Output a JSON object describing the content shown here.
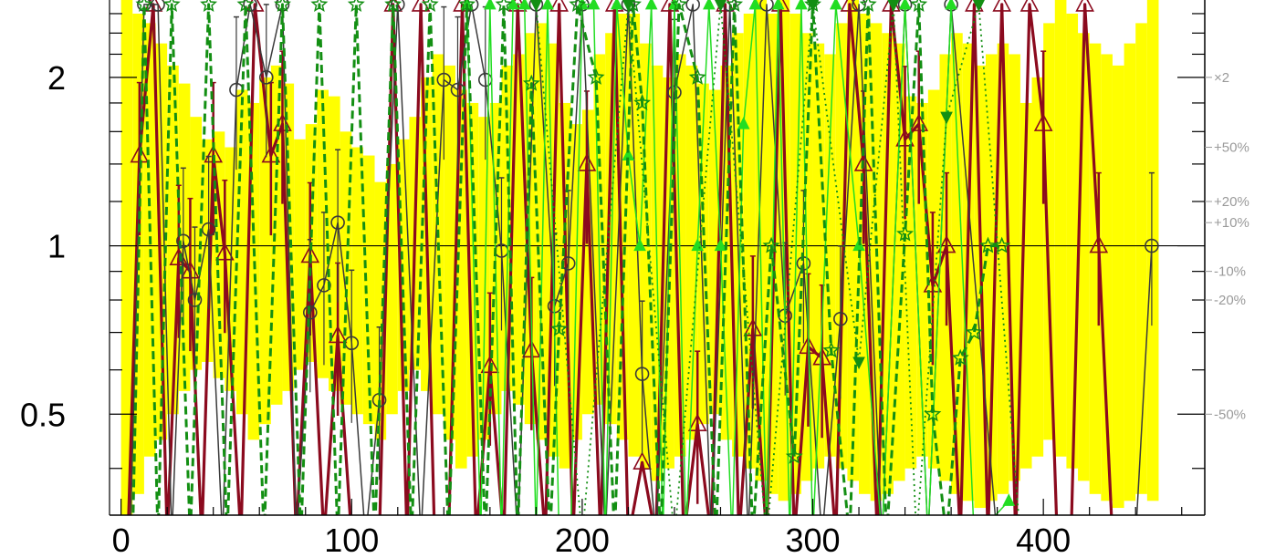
{
  "chart_data": {
    "type": "line",
    "x_scale": "linear",
    "y_scale": "log",
    "xlim": [
      -5,
      470
    ],
    "ylim": [
      0.33,
      2.75
    ],
    "x_ticks": [
      0,
      100,
      200,
      300,
      400
    ],
    "x_tick_labels": [
      "0",
      "100",
      "200",
      "300",
      "400"
    ],
    "y_ticks": [
      0.5,
      1,
      2
    ],
    "y_tick_labels": [
      "0.5",
      "1",
      "2"
    ],
    "reference_line": 1,
    "right_axis_labels": [
      {
        "value": 2,
        "label": "×2"
      },
      {
        "value": 1.5,
        "label": "+50%"
      },
      {
        "value": 1.2,
        "label": "+20%"
      },
      {
        "value": 1.1,
        "label": "+10%"
      },
      {
        "value": 0.9,
        "label": "-10%"
      },
      {
        "value": 0.8,
        "label": "-20%"
      },
      {
        "value": 0.5,
        "label": "-50%"
      }
    ],
    "colors": {
      "band": "#ffff00",
      "dark_red": "#8b0a1e",
      "dark_gray": "#3a3a3a",
      "green_light": "#22dd22",
      "green_dark": "#138f13",
      "frame": "#000000"
    },
    "band": {
      "x": [
        0,
        5,
        10,
        15,
        20,
        25,
        30,
        35,
        40,
        45,
        50,
        55,
        60,
        65,
        70,
        75,
        80,
        85,
        90,
        95,
        100,
        105,
        110,
        115,
        120,
        125,
        130,
        135,
        140,
        145,
        150,
        155,
        160,
        165,
        170,
        175,
        180,
        185,
        190,
        195,
        200,
        205,
        210,
        215,
        220,
        225,
        230,
        235,
        240,
        245,
        250,
        255,
        260,
        265,
        270,
        275,
        280,
        285,
        290,
        295,
        300,
        305,
        310,
        315,
        320,
        325,
        330,
        335,
        340,
        345,
        350,
        355,
        360,
        365,
        370,
        375,
        380,
        385,
        390,
        395,
        400,
        405,
        410,
        415,
        420,
        425,
        430,
        435,
        440,
        445,
        450
      ],
      "upper": [
        2.75,
        2.6,
        2.5,
        2.3,
        2.1,
        1.95,
        1.7,
        1.55,
        1.6,
        1.5,
        1.9,
        1.8,
        2.0,
        2.1,
        1.95,
        1.55,
        1.65,
        1.9,
        1.85,
        1.6,
        1.5,
        1.45,
        1.3,
        1.4,
        1.55,
        1.7,
        2.0,
        2.2,
        2.1,
        1.9,
        1.8,
        1.7,
        1.8,
        2.1,
        2.2,
        2.4,
        2.5,
        2.3,
        1.8,
        1.65,
        1.75,
        2.2,
        2.4,
        2.6,
        2.6,
        2.3,
        2.1,
        2.0,
        2.2,
        2.1,
        1.95,
        1.9,
        2.1,
        2.4,
        2.6,
        2.75,
        2.6,
        2.75,
        2.6,
        2.4,
        2.3,
        2.2,
        2.5,
        2.75,
        2.6,
        2.5,
        2.4,
        2.3,
        1.85,
        1.8,
        1.9,
        2.2,
        2.4,
        2.3,
        2.1,
        2.2,
        2.3,
        2.2,
        1.8,
        2.0,
        2.5,
        2.75,
        2.6,
        2.4,
        2.3,
        2.2,
        2.1,
        2.3,
        2.5,
        2.75,
        2.6
      ],
      "lower": [
        0.33,
        0.36,
        0.42,
        0.45,
        0.5,
        0.55,
        0.6,
        0.62,
        0.58,
        0.55,
        0.5,
        0.45,
        0.48,
        0.52,
        0.55,
        0.6,
        0.62,
        0.58,
        0.55,
        0.52,
        0.5,
        0.48,
        0.45,
        0.5,
        0.55,
        0.6,
        0.55,
        0.5,
        0.45,
        0.4,
        0.42,
        0.45,
        0.5,
        0.55,
        0.52,
        0.48,
        0.45,
        0.42,
        0.4,
        0.45,
        0.5,
        0.52,
        0.48,
        0.45,
        0.42,
        0.4,
        0.38,
        0.4,
        0.42,
        0.45,
        0.48,
        0.5,
        0.45,
        0.42,
        0.4,
        0.38,
        0.36,
        0.35,
        0.36,
        0.38,
        0.4,
        0.42,
        0.4,
        0.38,
        0.36,
        0.35,
        0.36,
        0.38,
        0.4,
        0.42,
        0.4,
        0.38,
        0.36,
        0.35,
        0.34,
        0.35,
        0.36,
        0.38,
        0.4,
        0.42,
        0.45,
        0.42,
        0.4,
        0.38,
        0.36,
        0.35,
        0.34,
        0.35,
        0.36,
        0.35,
        0.34
      ]
    },
    "series": [
      {
        "marker": "triangle",
        "style": "solid-thick",
        "color": "#8b0a1e",
        "x": [
          3,
          8,
          14,
          20,
          25,
          30,
          35,
          40,
          45,
          52,
          58,
          65,
          70,
          76,
          82,
          88,
          94,
          100,
          106,
          112,
          118,
          124,
          130,
          136,
          142,
          148,
          154,
          160,
          166,
          172,
          178,
          184,
          190,
          196,
          202,
          208,
          214,
          220,
          226,
          232,
          238,
          244,
          250,
          256,
          262,
          268,
          274,
          280,
          286,
          292,
          298,
          304,
          310,
          316,
          322,
          328,
          334,
          340,
          346,
          352,
          358,
          364,
          370,
          376,
          382,
          388,
          394,
          400,
          406,
          412,
          418,
          424,
          430
        ],
        "y": [
          0.3,
          1.45,
          2.7,
          0.3,
          0.95,
          0.9,
          0.3,
          1.45,
          0.97,
          0.3,
          2.7,
          1.45,
          1.65,
          0.3,
          0.96,
          0.3,
          0.69,
          0.3,
          0.3,
          0.3,
          2.7,
          0.3,
          2.7,
          0.3,
          0.3,
          2.7,
          0.3,
          0.61,
          0.3,
          2.7,
          0.65,
          0.3,
          2.7,
          0.3,
          1.4,
          0.3,
          2.7,
          0.3,
          0.41,
          0.3,
          2.7,
          0.3,
          0.48,
          0.3,
          2.7,
          0.3,
          0.71,
          0.3,
          2.7,
          0.3,
          0.66,
          0.63,
          0.3,
          2.7,
          1.4,
          0.3,
          2.7,
          1.55,
          1.65,
          0.85,
          1.0,
          0.3,
          2.7,
          0.3,
          2.7,
          0.3,
          2.7,
          1.65,
          0.3,
          0.3,
          2.7,
          1.0,
          0.3
        ]
      },
      {
        "marker": "circle",
        "style": "solid-thin",
        "color": "#3a3a3a",
        "x": [
          4,
          10,
          16,
          22,
          27,
          32,
          38,
          44,
          50,
          56,
          63,
          70,
          76,
          82,
          88,
          94,
          100,
          106,
          112,
          120,
          130,
          140,
          146,
          152,
          158,
          165,
          172,
          180,
          188,
          194,
          200,
          210,
          220,
          226,
          232,
          240,
          248,
          256,
          264,
          272,
          280,
          288,
          296,
          304,
          312,
          320,
          330,
          340,
          350,
          360,
          380,
          410,
          440,
          447
        ],
        "y": [
          0.3,
          2.7,
          2.7,
          0.3,
          1.02,
          0.8,
          1.07,
          0.3,
          1.9,
          2.7,
          2.0,
          2.7,
          0.3,
          0.76,
          0.85,
          1.1,
          0.67,
          0.3,
          0.53,
          2.7,
          0.3,
          1.98,
          1.9,
          2.7,
          1.98,
          0.98,
          0.3,
          2.7,
          0.78,
          0.93,
          2.7,
          0.3,
          2.7,
          0.59,
          0.3,
          1.88,
          2.7,
          0.3,
          2.7,
          0.3,
          2.7,
          0.75,
          0.93,
          0.3,
          0.74,
          2.7,
          0.3,
          2.7,
          0.3,
          2.7,
          0.3,
          0.3,
          0.3,
          1.0
        ]
      },
      {
        "marker": "triangle-up",
        "style": "solid-thin",
        "color": "#22dd22",
        "x": [
          150,
          156,
          160,
          165,
          170,
          175,
          180,
          185,
          190,
          195,
          200,
          205,
          210,
          215,
          220,
          225,
          230,
          235,
          240,
          245,
          250,
          255,
          260,
          265,
          270,
          275,
          280,
          285,
          290,
          295,
          300,
          310,
          320,
          330,
          340,
          350,
          360,
          370,
          385
        ],
        "y": [
          2.7,
          0.3,
          2.7,
          0.3,
          2.7,
          2.7,
          0.3,
          2.7,
          0.3,
          0.3,
          2.7,
          2.7,
          0.3,
          2.7,
          1.45,
          1.0,
          2.7,
          0.3,
          2.7,
          0.3,
          1.0,
          2.7,
          1.0,
          0.3,
          1.65,
          2.7,
          0.3,
          2.7,
          0.3,
          2.7,
          0.3,
          2.7,
          1.0,
          0.3,
          2.7,
          0.3,
          2.7,
          0.3,
          0.35
        ]
      },
      {
        "marker": "star",
        "style": "dashed-thick",
        "color": "#138f13",
        "x": [
          5,
          10,
          16,
          22,
          30,
          38,
          46,
          54,
          62,
          70,
          78,
          86,
          94,
          102,
          110,
          118,
          126,
          134,
          142,
          150,
          158,
          166,
          172,
          178,
          186,
          190,
          198,
          206,
          214,
          222,
          226,
          234,
          242,
          250,
          258,
          266,
          274,
          282,
          292,
          300,
          308,
          316,
          324,
          332,
          340,
          346,
          352,
          358,
          364,
          370,
          376,
          382
        ],
        "y": [
          0.3,
          2.7,
          0.3,
          2.7,
          0.3,
          2.7,
          0.3,
          2.7,
          0.3,
          2.7,
          0.3,
          2.7,
          0.3,
          2.7,
          0.3,
          2.7,
          0.3,
          2.7,
          0.3,
          2.7,
          0.3,
          2.7,
          0.3,
          1.95,
          0.3,
          0.71,
          2.7,
          2.0,
          0.3,
          2.7,
          1.8,
          0.3,
          2.7,
          2.0,
          0.3,
          2.7,
          0.3,
          1.0,
          0.42,
          2.7,
          0.65,
          0.3,
          2.7,
          0.3,
          1.05,
          2.7,
          0.5,
          0.3,
          0.63,
          0.7,
          1.0,
          1.0
        ]
      },
      {
        "marker": "triangle-down",
        "style": "dotted",
        "color": "#138f13",
        "x": [
          180,
          200,
          220,
          240,
          260,
          280,
          300,
          320,
          335,
          345,
          358,
          372,
          390
        ],
        "y": [
          2.7,
          0.3,
          2.7,
          0.3,
          2.7,
          0.3,
          2.7,
          0.62,
          2.7,
          0.3,
          1.7,
          2.7,
          0.3
        ]
      }
    ]
  }
}
